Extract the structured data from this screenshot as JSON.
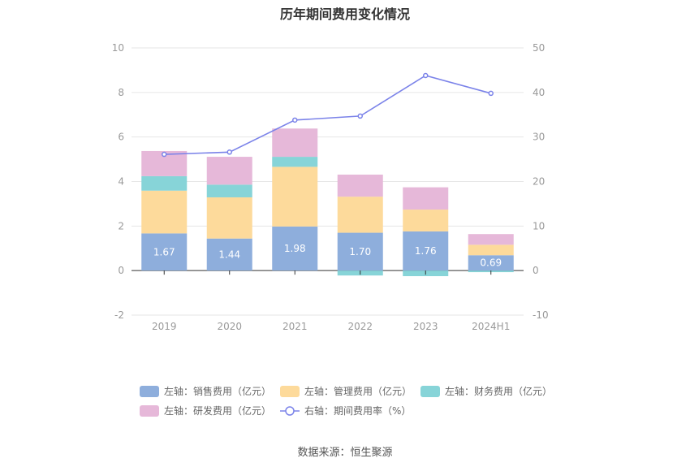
{
  "chart_data": {
    "type": "bar",
    "title": "历年期间费用变化情况",
    "categories": [
      "2019",
      "2020",
      "2021",
      "2022",
      "2023",
      "2024H1"
    ],
    "left_axis": {
      "min": -2,
      "max": 10,
      "ticks": [
        -2,
        0,
        2,
        4,
        6,
        8,
        10
      ]
    },
    "right_axis": {
      "min": -10,
      "max": 50,
      "ticks": [
        -10,
        0,
        10,
        20,
        30,
        40,
        50
      ]
    },
    "stacked": true,
    "series": [
      {
        "name": "左轴：销售费用（亿元）",
        "axis": "left",
        "type": "bar",
        "color": "#8eaedc",
        "values": [
          1.67,
          1.44,
          1.98,
          1.7,
          1.76,
          0.69
        ],
        "labels": [
          "1.67",
          "1.44",
          "1.98",
          "1.70",
          "1.76",
          "0.69"
        ]
      },
      {
        "name": "左轴：管理费用（亿元）",
        "axis": "left",
        "type": "bar",
        "color": "#fdda9b",
        "values": [
          1.92,
          1.85,
          2.68,
          1.62,
          0.98,
          0.47
        ]
      },
      {
        "name": "左轴：财务费用（亿元）",
        "axis": "left",
        "type": "bar",
        "color": "#87d4d8",
        "values": [
          0.65,
          0.57,
          0.45,
          -0.22,
          -0.25,
          -0.07
        ]
      },
      {
        "name": "左轴：研发费用（亿元）",
        "axis": "left",
        "type": "bar",
        "color": "#e6b8d9",
        "values": [
          1.13,
          1.25,
          1.27,
          0.99,
          1.0,
          0.48
        ]
      },
      {
        "name": "右轴：期间费用率（%）",
        "axis": "right",
        "type": "line",
        "color": "#7b83e9",
        "values": [
          26.1,
          26.6,
          33.8,
          34.7,
          43.8,
          39.8
        ]
      }
    ],
    "legend_position": "bottom",
    "grid": true
  },
  "source": "数据来源：恒生聚源"
}
